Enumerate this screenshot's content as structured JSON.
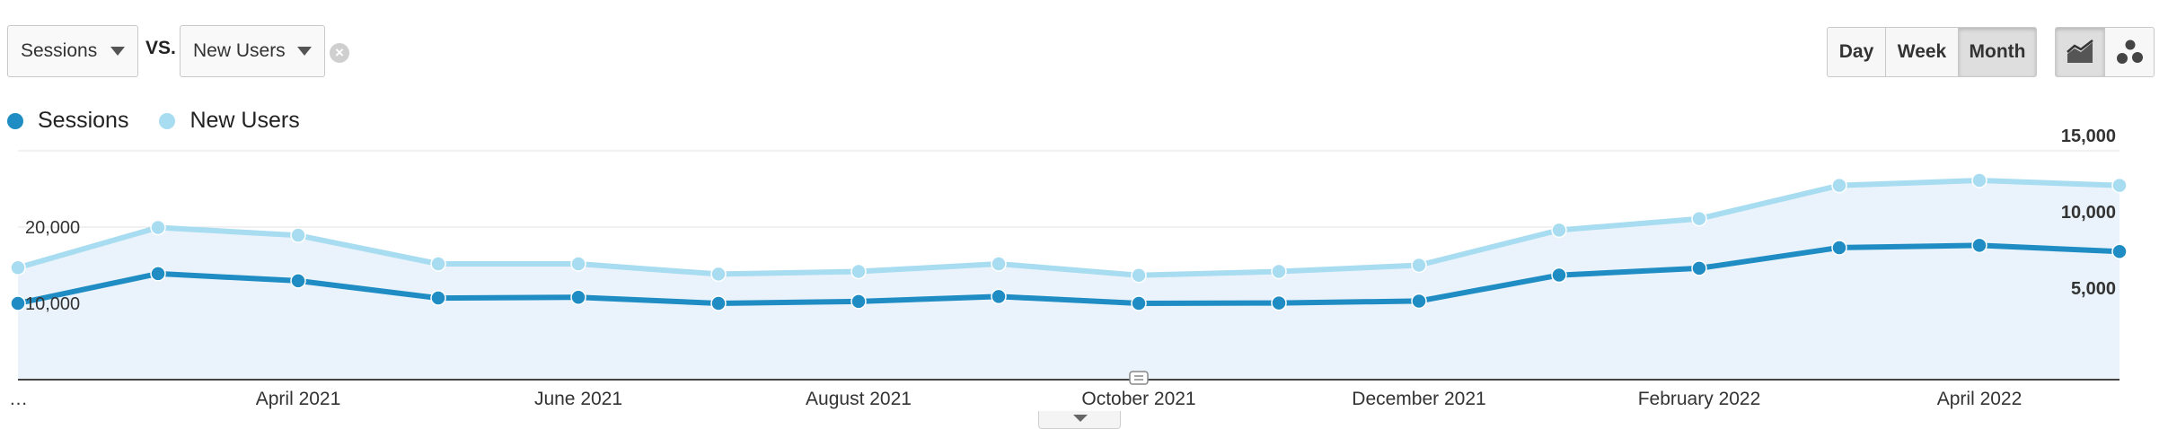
{
  "controls": {
    "metric1": "Sessions",
    "vs_label": "VS.",
    "metric2": "New Users",
    "clear_symbol": "×",
    "granularity": [
      "Day",
      "Week",
      "Month"
    ],
    "granularity_selected": "Month",
    "chart_type_icons": [
      "line-chart-icon",
      "motion-chart-icon"
    ],
    "chart_type_selected": "line-chart-icon"
  },
  "colors": {
    "sessions": "#1f8dc3",
    "new_users": "#a8dcf0",
    "area_fill": "#eaf3fb",
    "grid": "#e3e3e3",
    "axis": "#444444"
  },
  "chart_data": {
    "type": "line",
    "title": "",
    "x": [
      "2021-02",
      "2021-03",
      "2021-04",
      "2021-05",
      "2021-06",
      "2021-07",
      "2021-08",
      "2021-09",
      "2021-10",
      "2021-11",
      "2021-12",
      "2022-01",
      "2022-02",
      "2022-03",
      "2022-04",
      "2022-05"
    ],
    "x_tick_labels": [
      {
        "x": "2021-02",
        "label": "…"
      },
      {
        "x": "2021-04",
        "label": "April 2021"
      },
      {
        "x": "2021-06",
        "label": "June 2021"
      },
      {
        "x": "2021-08",
        "label": "August 2021"
      },
      {
        "x": "2021-10",
        "label": "October 2021"
      },
      {
        "x": "2021-12",
        "label": "December 2021"
      },
      {
        "x": "2022-02",
        "label": "February 2022"
      },
      {
        "x": "2022-04",
        "label": "April 2022"
      }
    ],
    "series": [
      {
        "name": "Sessions",
        "axis": "left",
        "values": [
          10000,
          13900,
          12950,
          10700,
          10800,
          10000,
          10250,
          10900,
          10000,
          10050,
          10300,
          13700,
          14600,
          17300,
          17600,
          16800
        ]
      },
      {
        "name": "New Users",
        "axis": "right",
        "values": [
          7340,
          9970,
          9460,
          7590,
          7590,
          6920,
          7090,
          7590,
          6840,
          7090,
          7500,
          9800,
          10550,
          12730,
          13060,
          12730
        ]
      }
    ],
    "left_axis": {
      "ylim": [
        0,
        30000
      ],
      "ticks": [
        {
          "value": 10000,
          "label": "10,000"
        },
        {
          "value": 20000,
          "label": "20,000"
        }
      ]
    },
    "right_axis": {
      "ylim": [
        0,
        15000
      ],
      "ticks": [
        {
          "value": 5000,
          "label": "5,000"
        },
        {
          "value": 10000,
          "label": "10,000"
        },
        {
          "value": 15000,
          "label": "15,000"
        }
      ]
    },
    "annotation_marker": {
      "x": "2021-10",
      "icon": "annotation-icon"
    },
    "grid": true,
    "legend": "top-left"
  }
}
